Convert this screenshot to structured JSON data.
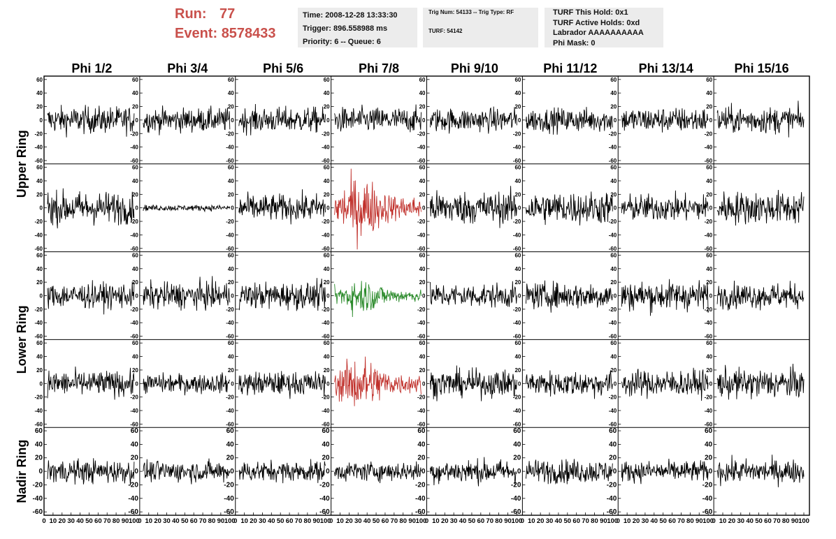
{
  "header": {
    "run_label": "Run:",
    "run_value": "77",
    "event_label": "Event:",
    "event_value": "8578433",
    "time": "Time: 2008-12-28 13:33:30",
    "trigger": "Trigger: 896.558988 ms",
    "priority": "Priority: 6 -- Queue: 6",
    "trig_num": "Trig Num: 54133 -- Trig Type: RF",
    "turf": "TURF: 54142",
    "turf_hold": "TURF This Hold: 0x1",
    "turf_active": "TURF Active Holds: 0xd",
    "labrador": "Labrador AAAAAAAAAA",
    "phi_mask": "Phi Mask: 0"
  },
  "colors": {
    "run_text": "#c9504b",
    "trace": "#000000",
    "trace_red": "#c0302b",
    "trace_green": "#2a8a2a",
    "info_bg": "#ececec"
  },
  "chart_data": {
    "type": "line",
    "columns": [
      "Phi 1/2",
      "Phi 3/4",
      "Phi 5/6",
      "Phi 7/8",
      "Phi 9/10",
      "Phi 11/12",
      "Phi 13/14",
      "Phi 15/16"
    ],
    "row_groups": [
      {
        "label": "Upper Ring",
        "rows": [
          0,
          1
        ]
      },
      {
        "label": "Lower Ring",
        "rows": [
          2,
          3
        ]
      },
      {
        "label": "Nadir Ring",
        "rows": [
          4
        ]
      }
    ],
    "xlim": [
      0,
      100
    ],
    "ylim": [
      -65,
      65
    ],
    "x_ticks": [
      0,
      10,
      20,
      30,
      40,
      50,
      60,
      70,
      80,
      90,
      100
    ],
    "x_tick_labels": [
      "0",
      "10",
      "20",
      "30",
      "40",
      "50",
      "60",
      "70",
      "80",
      "90",
      "100"
    ],
    "y_ticks": [
      -60,
      -40,
      -20,
      0,
      20,
      40,
      60
    ],
    "y_tick_labels": [
      "-60",
      "-40",
      "-20",
      "0",
      "20",
      "40",
      "60"
    ],
    "amplitudes": [
      [
        18,
        16,
        17,
        17,
        16,
        16,
        17,
        18
      ],
      [
        22,
        4,
        18,
        25,
        22,
        22,
        18,
        22
      ],
      [
        17,
        18,
        18,
        14,
        16,
        18,
        20,
        17
      ],
      [
        17,
        13,
        16,
        22,
        18,
        17,
        18,
        20
      ],
      [
        16,
        14,
        14,
        13,
        16,
        16,
        14,
        16
      ]
    ],
    "highlight": [
      {
        "row": 1,
        "col": 3,
        "color": "red"
      },
      {
        "row": 2,
        "col": 3,
        "color": "green"
      },
      {
        "row": 3,
        "col": 3,
        "color": "red"
      }
    ],
    "samples": 92
  }
}
